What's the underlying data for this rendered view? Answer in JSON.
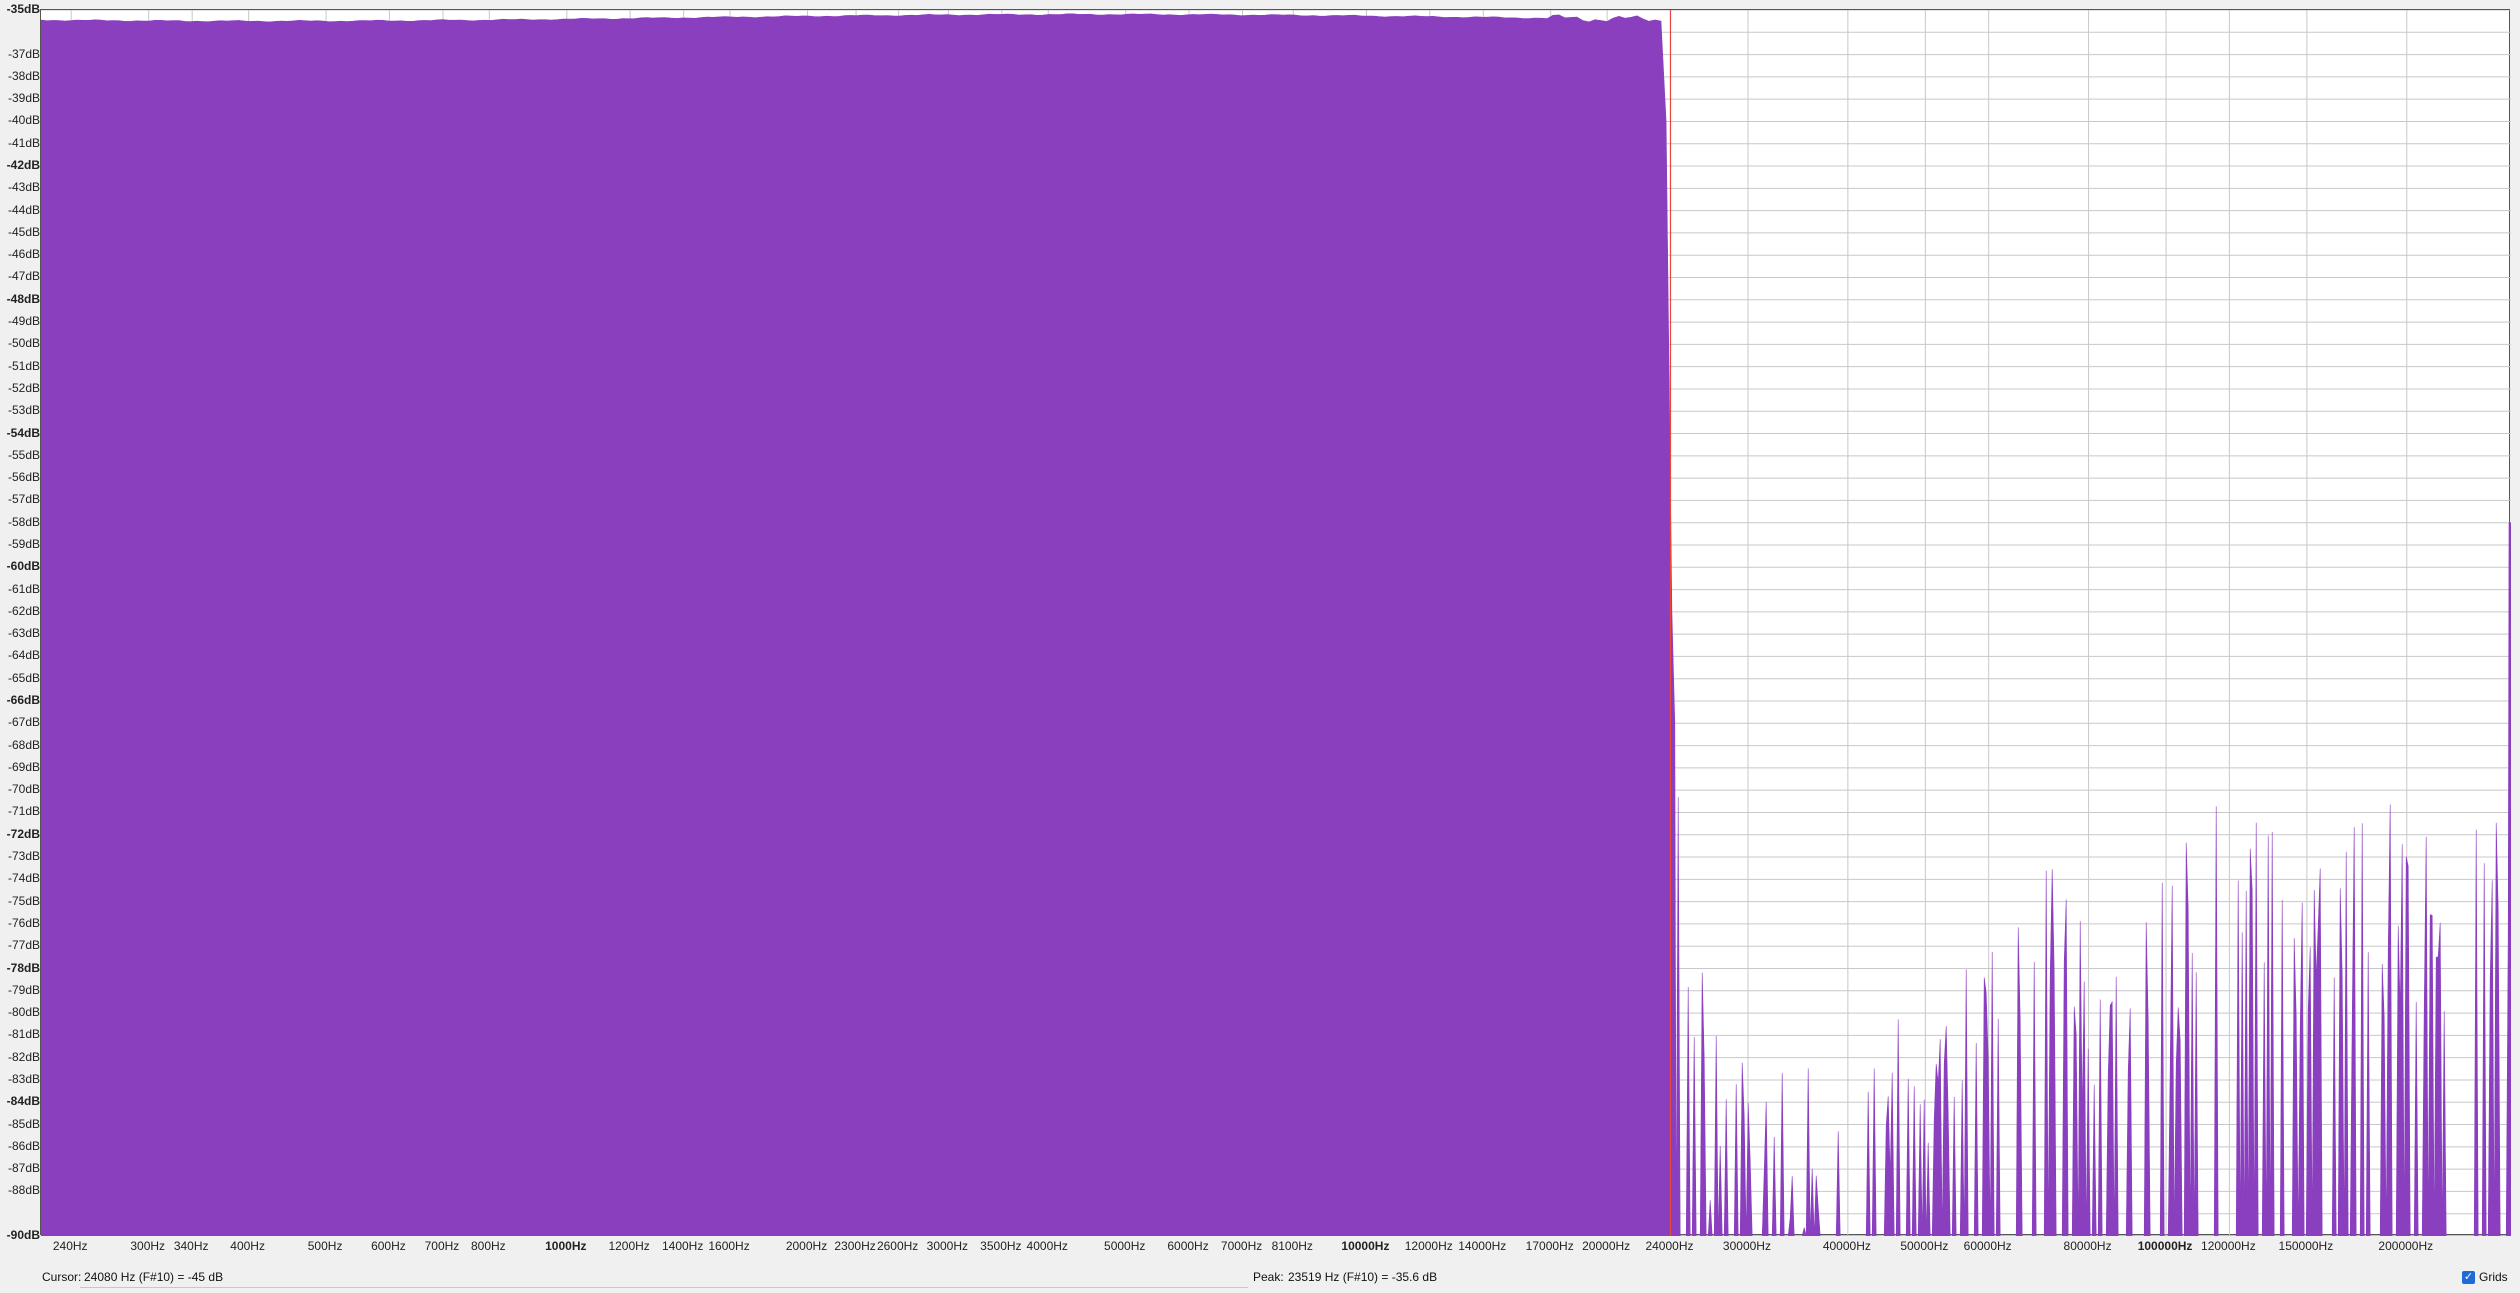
{
  "spectrum": {
    "y_labels": [
      "-35dB",
      "-37dB",
      "-38dB",
      "-39dB",
      "-40dB",
      "-41dB",
      "-42dB",
      "-43dB",
      "-44dB",
      "-45dB",
      "-46dB",
      "-47dB",
      "-48dB",
      "-49dB",
      "-50dB",
      "-51dB",
      "-52dB",
      "-53dB",
      "-54dB",
      "-55dB",
      "-56dB",
      "-57dB",
      "-58dB",
      "-59dB",
      "-60dB",
      "-61dB",
      "-62dB",
      "-63dB",
      "-64dB",
      "-65dB",
      "-66dB",
      "-67dB",
      "-68dB",
      "-69dB",
      "-70dB",
      "-71dB",
      "-72dB",
      "-73dB",
      "-74dB",
      "-75dB",
      "-76dB",
      "-77dB",
      "-78dB",
      "-79dB",
      "-80dB",
      "-81dB",
      "-82dB",
      "-83dB",
      "-84dB",
      "-85dB",
      "-86dB",
      "-87dB",
      "-88dB",
      "-90dB"
    ],
    "y_bold": [
      "-35dB",
      "-42dB",
      "-48dB",
      "-54dB",
      "-60dB",
      "-66dB",
      "-72dB",
      "-78dB",
      "-84dB",
      "-90dB"
    ],
    "x_labels": [
      "240Hz",
      "300Hz",
      "340Hz",
      "400Hz",
      "500Hz",
      "600Hz",
      "700Hz",
      "800Hz",
      "1000Hz",
      "1200Hz",
      "1400Hz",
      "1600Hz",
      "2000Hz",
      "2300Hz",
      "2600Hz",
      "3000Hz",
      "3500Hz",
      "4000Hz",
      "5000Hz",
      "6000Hz",
      "7000Hz",
      "8100Hz",
      "10000Hz",
      "12000Hz",
      "14000Hz",
      "17000Hz",
      "20000Hz",
      "24000Hz",
      "30000Hz",
      "40000Hz",
      "50000Hz",
      "60000Hz",
      "80000Hz",
      "100000Hz",
      "120000Hz",
      "150000Hz",
      "200000Hz"
    ],
    "x_bold": [
      "1000Hz",
      "10000Hz",
      "100000Hz"
    ],
    "fill_color": "#8a3fbf",
    "cursor_line_color": "#e8453c",
    "grid_color": "#c8c8c8"
  },
  "chart_data": {
    "type": "area",
    "xscale": "log",
    "xlim": [
      220,
      270000
    ],
    "ylim": [
      -90,
      -35
    ],
    "x": [
      240,
      500,
      1000,
      2000,
      5000,
      10000,
      20000,
      23519,
      24200,
      25000,
      27000,
      30000,
      40000,
      50000,
      60000,
      70000,
      80000,
      100000,
      120000,
      150000,
      200000
    ],
    "y": [
      -35.3,
      -35.3,
      -35.4,
      -35.5,
      -35.4,
      -35.3,
      -35.4,
      -35.6,
      -67,
      -72,
      -79,
      -80,
      -84,
      -77,
      -76,
      -68,
      -76,
      -73,
      -69,
      -73,
      -70
    ]
  },
  "cursor_freq": 24000,
  "status": {
    "cursor_label": "Cursor:",
    "cursor_value": "24080 Hz (F#10) = -45 dB",
    "peak_label": "Peak:",
    "peak_value": "23519 Hz (F#10) = -35.6 dB",
    "grids_label": "Grids",
    "grids_checked": true
  }
}
